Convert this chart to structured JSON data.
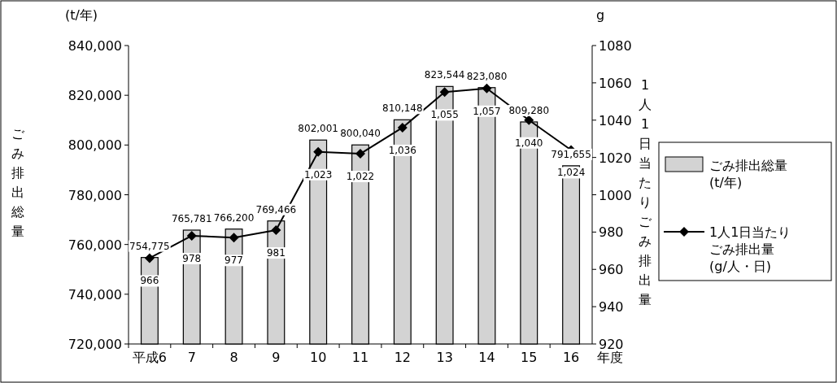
{
  "chart_data": {
    "type": "bar",
    "xlabel": "年度",
    "ylabel": "ごみ排出総量",
    "y2label": "1人1日当たりごみ排出量",
    "annotations": [
      "(t/年)",
      "g"
    ],
    "categories": [
      "平成6",
      "7",
      "8",
      "9",
      "10",
      "11",
      "12",
      "13",
      "14",
      "15",
      "16"
    ],
    "series": [
      {
        "name": "ごみ排出総量(t/年)",
        "color": "#d3d3d3",
        "values": [
          754775,
          765781,
          766200,
          769466,
          802001,
          800040,
          810148,
          823544,
          823080,
          809280,
          791655
        ],
        "value_labels": [
          "754,775",
          "765,781",
          "766,200",
          "769,466",
          "802,001",
          "800,040",
          "810,148",
          "823,544",
          "823,080",
          "809,280",
          "791,655"
        ]
      },
      {
        "name": "1人1日当たりごみ排出量(g/人・日)",
        "type": "line",
        "axis": "y2",
        "color": "#000000",
        "marker": "diamond",
        "values": [
          966,
          978,
          977,
          981,
          1023,
          1022,
          1036,
          1055,
          1057,
          1040,
          1024
        ],
        "value_labels": [
          "966",
          "978",
          "977",
          "981",
          "1,023",
          "1,022",
          "1,036",
          "1,055",
          "1,057",
          "1,040",
          "1,024"
        ]
      }
    ],
    "ylim": [
      720000,
      840000
    ],
    "yticks": [
      {
        "value": 720000,
        "label": "720,000"
      },
      {
        "value": 740000,
        "label": "740,000"
      },
      {
        "value": 760000,
        "label": "760,000"
      },
      {
        "value": 780000,
        "label": "780,000"
      },
      {
        "value": 800000,
        "label": "800,000"
      },
      {
        "value": 820000,
        "label": "820,000"
      },
      {
        "value": 840000,
        "label": "840,000"
      }
    ],
    "y2lim": [
      920,
      1080
    ],
    "y2ticks": [
      920,
      940,
      960,
      980,
      1000,
      1020,
      1040,
      1060,
      1080
    ],
    "legend": "right"
  }
}
